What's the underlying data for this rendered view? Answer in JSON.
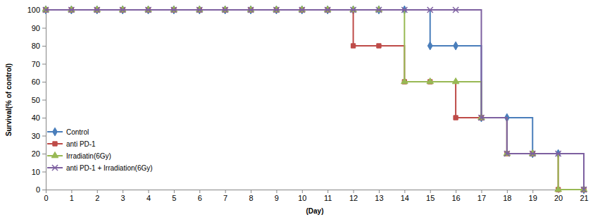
{
  "chart_data": {
    "type": "line",
    "line_style": "step",
    "x_label": "(Day)",
    "y_label": "Survival(% of control)",
    "x": [
      0,
      1,
      2,
      3,
      4,
      5,
      6,
      7,
      8,
      9,
      10,
      11,
      12,
      13,
      14,
      15,
      16,
      17,
      18,
      19,
      20,
      21
    ],
    "series": [
      {
        "name": "Control",
        "color": "#4a7ebb",
        "marker": "diamond",
        "values": [
          100,
          100,
          100,
          100,
          100,
          100,
          100,
          100,
          100,
          100,
          100,
          100,
          100,
          100,
          100,
          80,
          80,
          40,
          40,
          20,
          20,
          0
        ]
      },
      {
        "name": "anti PD-1",
        "color": "#be4b48",
        "marker": "square",
        "values": [
          100,
          100,
          100,
          100,
          100,
          100,
          100,
          100,
          100,
          100,
          100,
          100,
          80,
          80,
          60,
          60,
          40,
          40,
          20,
          20,
          0,
          0
        ]
      },
      {
        "name": "Irradiatin(6Gy)",
        "color": "#98b954",
        "marker": "triangle",
        "values": [
          100,
          100,
          100,
          100,
          100,
          100,
          100,
          100,
          100,
          100,
          100,
          100,
          100,
          100,
          60,
          60,
          60,
          40,
          20,
          20,
          0,
          0
        ]
      },
      {
        "name": "anti PD-1 + Irradiation(6Gy)",
        "color": "#7d60a0",
        "marker": "x",
        "values": [
          100,
          100,
          100,
          100,
          100,
          100,
          100,
          100,
          100,
          100,
          100,
          100,
          100,
          100,
          100,
          100,
          100,
          40,
          20,
          20,
          20,
          0
        ]
      }
    ],
    "xlim": [
      0,
      21
    ],
    "xticks": [
      0,
      1,
      2,
      3,
      4,
      5,
      6,
      7,
      8,
      9,
      10,
      11,
      12,
      13,
      14,
      15,
      16,
      17,
      18,
      19,
      20,
      21
    ],
    "ylim": [
      0,
      100
    ],
    "yticks": [
      0,
      10,
      20,
      30,
      40,
      50,
      60,
      70,
      80,
      90,
      100
    ],
    "grid": false,
    "legend": "lower left"
  }
}
